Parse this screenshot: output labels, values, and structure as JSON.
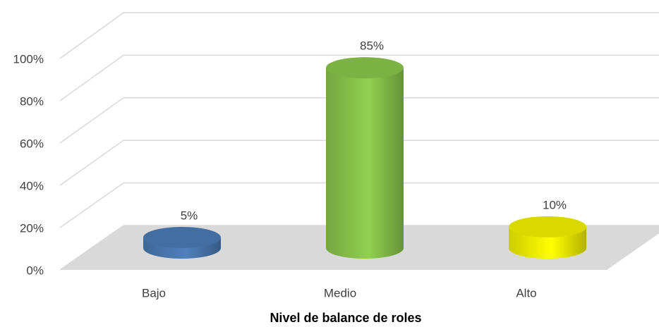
{
  "chart_data": {
    "type": "bar3d",
    "x_label": "Nivel de balance de roles",
    "categories": [
      "Bajo",
      "Medio",
      "Alto"
    ],
    "values": [
      5,
      85,
      10
    ],
    "value_labels": [
      "5%",
      "85%",
      "10%"
    ],
    "colors": [
      "#4f81bd",
      "#92d050",
      "#ffff00"
    ],
    "ylim": [
      0,
      100
    ],
    "yticks": [
      {
        "value": 0,
        "label": "0%"
      },
      {
        "value": 20,
        "label": "20%"
      },
      {
        "value": 40,
        "label": "40%"
      },
      {
        "value": 60,
        "label": "60%"
      },
      {
        "value": 80,
        "label": "80%"
      },
      {
        "value": 100,
        "label": "100%"
      }
    ],
    "grid": true
  }
}
